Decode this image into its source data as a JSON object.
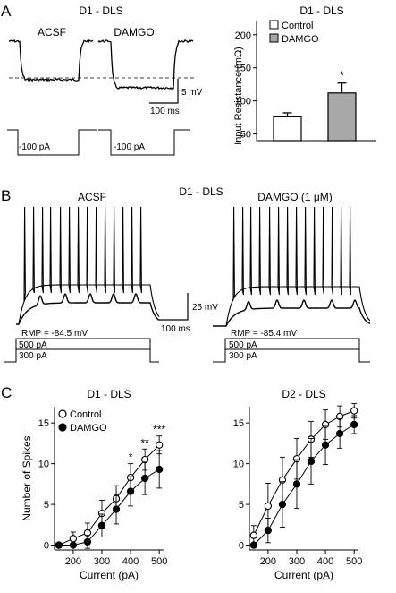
{
  "panelA": {
    "letter": "A",
    "title": "D1 - DLS",
    "trace_label_1": "ACSF",
    "trace_label_2": "DAMGO",
    "scale_mv": "5 mV",
    "scale_ms": "100 ms",
    "step_1": "-100 pA",
    "step_2": "-100 pA"
  },
  "panelA_bar": {
    "title": "D1 - DLS",
    "ylabel": "Input Resistance (mΩ)",
    "legend": [
      "Control",
      "DAMGO"
    ],
    "ticks": [
      "50",
      "100",
      "150",
      "200"
    ],
    "significance": "*"
  },
  "panelB": {
    "letter": "B",
    "title": "D1 - DLS",
    "trace_label_1": "ACSF",
    "trace_label_2": "DAMGO  (1 μM)",
    "scale_mv": "25 mV",
    "scale_ms": "100 ms",
    "rmp_1": "RMP = -84.5 mV",
    "rmp_2": "RMP = -85.4 mV",
    "step_hi_1": "500 pA",
    "step_lo_1": "300 pA",
    "step_hi_2": "500 pA",
    "step_lo_2": "300 pA"
  },
  "panelC": {
    "letter": "C"
  },
  "chart_data": [
    {
      "type": "bar",
      "title": "D1 - DLS",
      "ylabel": "Input Resistance (mΩ)",
      "categories": [
        "Control",
        "DAMGO"
      ],
      "values": [
        76,
        112
      ],
      "errors": [
        6,
        15
      ],
      "colors": [
        "#ffffff",
        "#a8a8a8"
      ],
      "ylim": [
        40,
        220
      ],
      "yticks": [
        50,
        100,
        150,
        200
      ],
      "significance": [
        "",
        "*"
      ],
      "legend_position": "top"
    },
    {
      "type": "scatter",
      "title": "D1 - DLS",
      "xlabel": "Current (pA)",
      "ylabel": "Number of Spikes",
      "x": [
        150,
        200,
        250,
        300,
        350,
        400,
        450,
        500
      ],
      "xlim": [
        135,
        515
      ],
      "ylim": [
        -0.6,
        17
      ],
      "xticks": [
        200,
        300,
        400,
        500
      ],
      "xtick_labels": [
        "200",
        "300",
        "400",
        "500"
      ],
      "yticks": [
        0,
        5,
        10,
        15
      ],
      "ytick_labels": [
        "0",
        "5",
        "10",
        "15"
      ],
      "series": [
        {
          "name": "Control",
          "marker": "open",
          "values": [
            0,
            0.8,
            1.5,
            3.9,
            5.7,
            8.3,
            10.5,
            12.3
          ],
          "errors": [
            0.2,
            0.8,
            1.2,
            1.6,
            1.6,
            1.7,
            1.3,
            1.1
          ]
        },
        {
          "name": "DAMGO",
          "marker": "filled",
          "values": [
            0,
            0,
            0.4,
            2.4,
            4.4,
            6.6,
            8.2,
            9.3
          ],
          "errors": [
            0.1,
            0.2,
            0.8,
            1.4,
            1.8,
            1.8,
            2.0,
            2.3
          ]
        }
      ],
      "annotations": [
        {
          "x": 400,
          "text": "*"
        },
        {
          "x": 450,
          "text": "**"
        },
        {
          "x": 500,
          "text": "***"
        }
      ],
      "legend_position": "top-left"
    },
    {
      "type": "scatter",
      "title": "D2 - DLS",
      "xlabel": "Current (pA)",
      "x": [
        150,
        200,
        250,
        300,
        350,
        400,
        450,
        500
      ],
      "xlim": [
        135,
        515
      ],
      "ylim": [
        -0.6,
        17
      ],
      "xticks": [
        200,
        300,
        400,
        500
      ],
      "xtick_labels": [
        "200",
        "300",
        "400",
        "500"
      ],
      "yticks": [
        0,
        5,
        10,
        15
      ],
      "ytick_labels": [
        "0",
        "5",
        "10",
        "15"
      ],
      "series": [
        {
          "name": "Control",
          "marker": "open",
          "values": [
            1.2,
            4.8,
            8.0,
            10.6,
            13.0,
            14.8,
            15.8,
            16.5
          ],
          "errors": [
            1.2,
            2.8,
            2.8,
            2.5,
            2.2,
            1.8,
            1.3,
            0.9
          ]
        },
        {
          "name": "DAMGO",
          "marker": "filled",
          "values": [
            0,
            1.8,
            5.0,
            7.5,
            10.3,
            12.3,
            13.7,
            14.8
          ],
          "errors": [
            0.1,
            1.5,
            2.8,
            3.0,
            2.8,
            2.4,
            1.8,
            1.1
          ]
        }
      ]
    }
  ]
}
